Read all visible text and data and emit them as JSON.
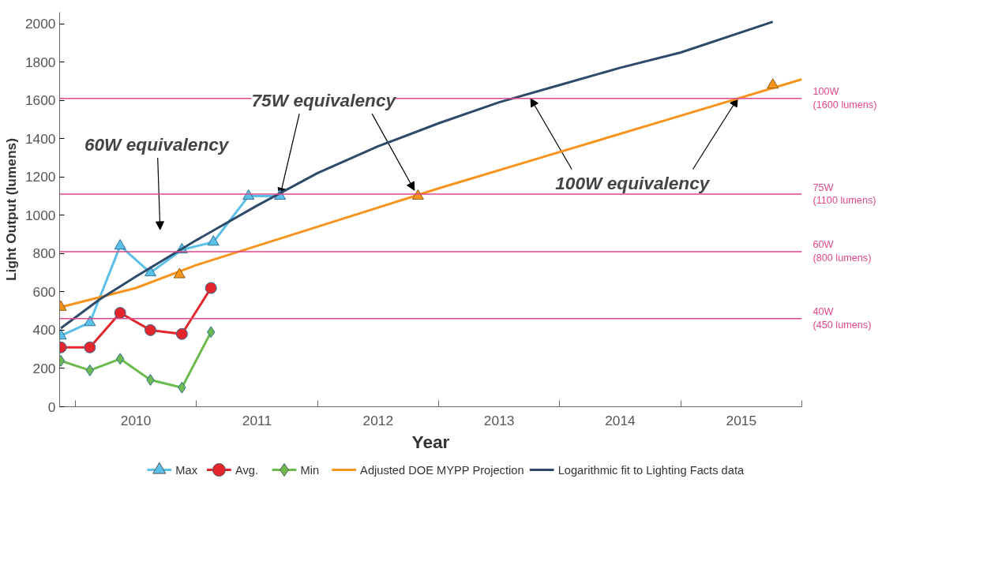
{
  "chart_data": {
    "type": "line",
    "xlabel": "Year",
    "ylabel": "Light Output (lumens)",
    "xlim": [
      2009.87,
      2016.0
    ],
    "ylim": [
      0,
      2060
    ],
    "xticks": [
      {
        "value": 2010.5,
        "label": "2010"
      },
      {
        "value": 2011.5,
        "label": "2011"
      },
      {
        "value": 2012.5,
        "label": "2012"
      },
      {
        "value": 2013.5,
        "label": "2013"
      },
      {
        "value": 2014.5,
        "label": "2014"
      },
      {
        "value": 2015.5,
        "label": "2015"
      },
      {
        "value": 2010,
        "label": null
      },
      {
        "value": 2011,
        "label": null
      },
      {
        "value": 2012,
        "label": null
      },
      {
        "value": 2013,
        "label": null
      },
      {
        "value": 2014,
        "label": null
      },
      {
        "value": 2015,
        "label": null
      },
      {
        "value": 2016,
        "label": null
      }
    ],
    "yticks": [
      0,
      200,
      400,
      600,
      800,
      1000,
      1200,
      1400,
      1600,
      1800,
      2000
    ],
    "grid": false,
    "legend": "bottom",
    "series": [
      {
        "name": "Max",
        "color": "#5bc0e8",
        "marker": "triangle",
        "x": [
          2009.88,
          2010.12,
          2010.37,
          2010.62,
          2010.88,
          2011.14,
          2011.43,
          2011.69
        ],
        "values": [
          370,
          440,
          840,
          700,
          820,
          860,
          1100,
          1100
        ]
      },
      {
        "name": "Avg.",
        "color": "#e3262b",
        "marker": "circle",
        "x": [
          2009.88,
          2010.12,
          2010.37,
          2010.62,
          2010.88,
          2011.12
        ],
        "values": [
          310,
          310,
          490,
          400,
          380,
          620
        ]
      },
      {
        "name": "Min",
        "color": "#6dbb4f",
        "marker": "diamond",
        "x": [
          2009.88,
          2010.12,
          2010.37,
          2010.62,
          2010.88,
          2011.12
        ],
        "values": [
          240,
          190,
          250,
          140,
          100,
          390
        ]
      },
      {
        "name": "Adjusted DOE MYPP Projection",
        "color": "#f7941d",
        "marker": "none",
        "x": [
          2009.88,
          2010.5,
          2011.0,
          2011.5,
          2012.0,
          2013.0,
          2014.0,
          2015.0,
          2016.0
        ],
        "values": [
          520,
          620,
          740,
          840,
          940,
          1140,
          1330,
          1520,
          1710
        ]
      },
      {
        "type": "scatter",
        "color": "#f7941d",
        "marker": "triangle",
        "x": [
          2009.88,
          2010.86,
          2012.83,
          2015.76
        ],
        "values": [
          520,
          690,
          1100,
          1680
        ]
      },
      {
        "name": "Logarithmic fit to Lighting Facts data",
        "color": "#2e4a6b",
        "marker": "none",
        "x": [
          2009.88,
          2010.2,
          2010.5,
          2011.0,
          2011.5,
          2012.0,
          2012.5,
          2013.0,
          2013.5,
          2014.0,
          2014.5,
          2015.0,
          2015.76
        ],
        "values": [
          410,
          560,
          680,
          870,
          1050,
          1220,
          1360,
          1480,
          1590,
          1680,
          1770,
          1850,
          2010
        ]
      }
    ],
    "ref_lines": [
      {
        "axis": "y",
        "value": 1610,
        "label": "100W (1600 lumens)",
        "color": "#e0488b"
      },
      {
        "axis": "y",
        "value": 1110,
        "label": "75W (1100 lumens)",
        "color": "#e0488b"
      },
      {
        "axis": "y",
        "value": 810,
        "label": "60W (800 lumens)",
        "color": "#e0488b"
      },
      {
        "axis": "y",
        "value": 460,
        "label": "40W (450 lumens)",
        "color": "#e0488b"
      }
    ],
    "annotations": [
      "60W equivalency",
      {
        "text": "75W equivalency",
        "x": 2011.69,
        "y": 1100
      },
      {
        "text": "100W equivalency",
        "x": 2013.76,
        "y": 1610
      }
    ]
  }
}
